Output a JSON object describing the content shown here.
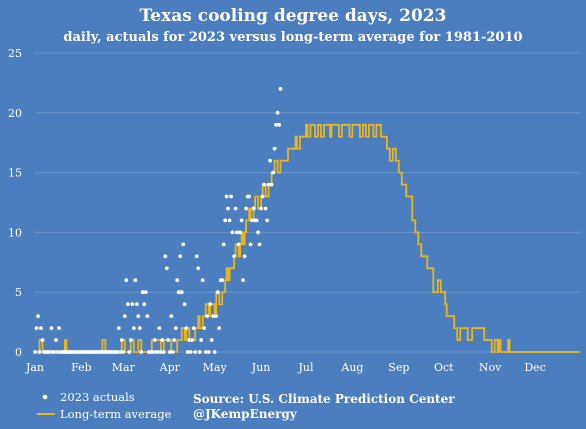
{
  "chart_data": {
    "type": "scatter",
    "title": "Texas cooling degree days, 2023",
    "subtitle": "daily, actuals for 2023 versus long-term average for 1981-2010",
    "xlabel": "",
    "ylabel": "",
    "ylim": [
      0,
      25
    ],
    "yticks": [
      "0",
      "5",
      "10",
      "15",
      "20",
      "25"
    ],
    "month_labels": [
      "Jan",
      "Feb",
      "Mar",
      "Apr",
      "May",
      "Jun",
      "Jul",
      "Aug",
      "Sep",
      "Oct",
      "Nov",
      "Dec"
    ],
    "grid": true,
    "legend_placement": "bottom-left",
    "colors": {
      "actuals": "#ffffff",
      "average": "#e8b51e",
      "background": "#4a7ebf",
      "grid": "#6b96cc"
    },
    "series": [
      {
        "name": "2023 actuals",
        "style": "points",
        "points": [
          [
            1,
            0
          ],
          [
            2,
            2
          ],
          [
            3,
            3
          ],
          [
            4,
            0
          ],
          [
            5,
            2
          ],
          [
            6,
            1
          ],
          [
            7,
            0
          ],
          [
            8,
            0
          ],
          [
            9,
            0
          ],
          [
            10,
            0
          ],
          [
            11,
            0
          ],
          [
            12,
            2
          ],
          [
            13,
            0
          ],
          [
            14,
            0
          ],
          [
            15,
            1
          ],
          [
            16,
            0
          ],
          [
            17,
            2
          ],
          [
            18,
            0
          ],
          [
            19,
            0
          ],
          [
            20,
            0
          ],
          [
            21,
            0
          ],
          [
            22,
            0
          ],
          [
            23,
            0
          ],
          [
            24,
            0
          ],
          [
            25,
            0
          ],
          [
            26,
            0
          ],
          [
            27,
            0
          ],
          [
            28,
            0
          ],
          [
            29,
            0
          ],
          [
            30,
            0
          ],
          [
            31,
            0
          ],
          [
            32,
            0
          ],
          [
            33,
            0
          ],
          [
            34,
            0
          ],
          [
            35,
            0
          ],
          [
            36,
            0
          ],
          [
            37,
            0
          ],
          [
            38,
            0
          ],
          [
            39,
            0
          ],
          [
            40,
            0
          ],
          [
            41,
            0
          ],
          [
            42,
            0
          ],
          [
            43,
            0
          ],
          [
            44,
            0
          ],
          [
            45,
            0
          ],
          [
            46,
            0
          ],
          [
            47,
            0
          ],
          [
            48,
            0
          ],
          [
            49,
            0
          ],
          [
            50,
            0
          ],
          [
            51,
            0
          ],
          [
            52,
            0
          ],
          [
            53,
            0
          ],
          [
            54,
            0
          ],
          [
            55,
            0
          ],
          [
            56,
            0
          ],
          [
            57,
            2
          ],
          [
            58,
            0
          ],
          [
            59,
            1
          ],
          [
            60,
            0
          ],
          [
            61,
            3
          ],
          [
            62,
            6
          ],
          [
            63,
            4
          ],
          [
            64,
            0
          ],
          [
            65,
            1
          ],
          [
            66,
            4
          ],
          [
            67,
            2
          ],
          [
            68,
            6
          ],
          [
            69,
            4
          ],
          [
            70,
            3
          ],
          [
            71,
            2
          ],
          [
            72,
            0
          ],
          [
            73,
            5
          ],
          [
            74,
            4
          ],
          [
            75,
            5
          ],
          [
            76,
            3
          ],
          [
            77,
            0
          ],
          [
            78,
            0
          ],
          [
            79,
            0
          ],
          [
            80,
            0
          ],
          [
            81,
            1
          ],
          [
            82,
            0
          ],
          [
            83,
            0
          ],
          [
            84,
            2
          ],
          [
            85,
            0
          ],
          [
            86,
            1
          ],
          [
            87,
            0
          ],
          [
            88,
            8
          ],
          [
            89,
            7
          ],
          [
            90,
            1
          ],
          [
            91,
            0
          ],
          [
            92,
            3
          ],
          [
            93,
            0
          ],
          [
            94,
            1
          ],
          [
            95,
            2
          ],
          [
            96,
            6
          ],
          [
            97,
            5
          ],
          [
            98,
            8
          ],
          [
            99,
            5
          ],
          [
            100,
            9
          ],
          [
            101,
            4
          ],
          [
            102,
            2
          ],
          [
            103,
            0
          ],
          [
            104,
            1
          ],
          [
            105,
            0
          ],
          [
            106,
            1
          ],
          [
            107,
            2
          ],
          [
            108,
            0
          ],
          [
            109,
            8
          ],
          [
            110,
            7
          ],
          [
            111,
            0
          ],
          [
            112,
            1
          ],
          [
            113,
            6
          ],
          [
            114,
            2
          ],
          [
            115,
            0
          ],
          [
            116,
            3
          ],
          [
            117,
            0
          ],
          [
            118,
            4
          ],
          [
            119,
            1
          ],
          [
            120,
            3
          ],
          [
            121,
            0
          ],
          [
            122,
            3
          ],
          [
            123,
            5
          ],
          [
            124,
            2
          ],
          [
            125,
            6
          ],
          [
            126,
            6
          ],
          [
            127,
            9
          ],
          [
            128,
            11
          ],
          [
            129,
            13
          ],
          [
            130,
            12
          ],
          [
            131,
            11
          ],
          [
            132,
            13
          ],
          [
            133,
            10
          ],
          [
            134,
            8
          ],
          [
            135,
            12
          ],
          [
            136,
            10
          ],
          [
            137,
            9
          ],
          [
            138,
            10
          ],
          [
            139,
            11
          ],
          [
            140,
            6
          ],
          [
            141,
            8
          ],
          [
            142,
            12
          ],
          [
            143,
            13
          ],
          [
            144,
            13
          ],
          [
            145,
            9
          ],
          [
            146,
            11
          ],
          [
            147,
            12
          ],
          [
            148,
            11
          ],
          [
            149,
            11
          ],
          [
            150,
            10
          ],
          [
            151,
            9
          ],
          [
            152,
            12
          ],
          [
            153,
            13
          ],
          [
            154,
            14
          ],
          [
            155,
            12
          ],
          [
            156,
            11
          ],
          [
            157,
            14
          ],
          [
            158,
            16
          ],
          [
            159,
            14
          ],
          [
            160,
            15
          ],
          [
            161,
            17
          ],
          [
            162,
            19
          ],
          [
            163,
            20
          ],
          [
            164,
            19
          ],
          [
            165,
            22
          ]
        ]
      },
      {
        "name": "Long-term average",
        "style": "line",
        "points": [
          [
            1,
            0
          ],
          [
            4,
            1
          ],
          [
            6,
            0
          ],
          [
            20,
            0
          ],
          [
            21,
            1
          ],
          [
            22,
            0
          ],
          [
            45,
            0
          ],
          [
            46,
            1
          ],
          [
            48,
            0
          ],
          [
            58,
            0
          ],
          [
            59,
            1
          ],
          [
            61,
            0
          ],
          [
            64,
            0
          ],
          [
            65,
            1
          ],
          [
            67,
            0
          ],
          [
            70,
            1
          ],
          [
            72,
            0
          ],
          [
            78,
            0
          ],
          [
            79,
            1
          ],
          [
            84,
            1
          ],
          [
            85,
            0
          ],
          [
            86,
            0
          ],
          [
            87,
            1
          ],
          [
            91,
            1
          ],
          [
            92,
            0
          ],
          [
            95,
            0
          ],
          [
            96,
            1
          ],
          [
            99,
            2
          ],
          [
            101,
            1
          ],
          [
            102,
            2
          ],
          [
            104,
            1
          ],
          [
            108,
            2
          ],
          [
            110,
            3
          ],
          [
            111,
            2
          ],
          [
            113,
            3
          ],
          [
            115,
            4
          ],
          [
            117,
            3
          ],
          [
            118,
            4
          ],
          [
            121,
            3
          ],
          [
            122,
            5
          ],
          [
            124,
            4
          ],
          [
            126,
            5
          ],
          [
            128,
            6
          ],
          [
            129,
            7
          ],
          [
            130,
            6
          ],
          [
            131,
            7
          ],
          [
            133,
            7
          ],
          [
            134,
            8
          ],
          [
            135,
            9
          ],
          [
            137,
            8
          ],
          [
            138,
            9
          ],
          [
            139,
            10
          ],
          [
            140,
            9
          ],
          [
            141,
            10
          ],
          [
            142,
            11
          ],
          [
            144,
            12
          ],
          [
            145,
            11
          ],
          [
            147,
            12
          ],
          [
            148,
            13
          ],
          [
            150,
            12
          ],
          [
            152,
            13
          ],
          [
            153,
            14
          ],
          [
            155,
            13
          ],
          [
            157,
            14
          ],
          [
            159,
            15
          ],
          [
            161,
            16
          ],
          [
            163,
            15
          ],
          [
            165,
            16
          ],
          [
            167,
            16
          ],
          [
            170,
            17
          ],
          [
            174,
            17
          ],
          [
            175,
            18
          ],
          [
            176,
            17
          ],
          [
            178,
            18
          ],
          [
            181,
            18
          ],
          [
            182,
            19
          ],
          [
            183,
            18
          ],
          [
            185,
            19
          ],
          [
            187,
            19
          ],
          [
            188,
            18
          ],
          [
            190,
            19
          ],
          [
            192,
            18
          ],
          [
            194,
            19
          ],
          [
            196,
            19
          ],
          [
            198,
            18
          ],
          [
            199,
            19
          ],
          [
            203,
            19
          ],
          [
            204,
            18
          ],
          [
            206,
            19
          ],
          [
            210,
            19
          ],
          [
            211,
            18
          ],
          [
            213,
            19
          ],
          [
            217,
            19
          ],
          [
            218,
            18
          ],
          [
            220,
            19
          ],
          [
            222,
            18
          ],
          [
            224,
            19
          ],
          [
            226,
            19
          ],
          [
            227,
            18
          ],
          [
            229,
            19
          ],
          [
            232,
            18
          ],
          [
            236,
            17
          ],
          [
            238,
            16
          ],
          [
            240,
            17
          ],
          [
            242,
            16
          ],
          [
            244,
            15
          ],
          [
            246,
            14
          ],
          [
            249,
            13
          ],
          [
            251,
            13
          ],
          [
            253,
            11
          ],
          [
            255,
            10
          ],
          [
            257,
            9
          ],
          [
            259,
            8
          ],
          [
            261,
            8
          ],
          [
            263,
            7
          ],
          [
            267,
            5
          ],
          [
            269,
            5
          ],
          [
            270,
            6
          ],
          [
            272,
            5
          ],
          [
            275,
            4
          ],
          [
            276,
            3
          ],
          [
            280,
            3
          ],
          [
            281,
            2
          ],
          [
            283,
            1
          ],
          [
            285,
            2
          ],
          [
            288,
            2
          ],
          [
            290,
            1
          ],
          [
            293,
            2
          ],
          [
            300,
            2
          ],
          [
            301,
            1
          ],
          [
            305,
            1
          ],
          [
            306,
            0
          ],
          [
            308,
            1
          ],
          [
            310,
            0
          ],
          [
            311,
            1
          ],
          [
            312,
            0
          ],
          [
            316,
            0
          ],
          [
            317,
            1
          ],
          [
            318,
            0
          ],
          [
            365,
            0
          ]
        ]
      }
    ]
  },
  "legend": {
    "actuals_label": "2023 actuals",
    "average_label": "Long-term average"
  },
  "source": {
    "line1": "Source: U.S. Climate Prediction Center",
    "line2": "@JKempEnergy"
  }
}
